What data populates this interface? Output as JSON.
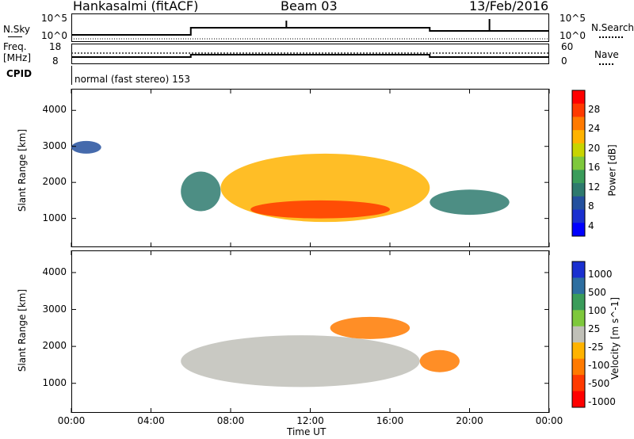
{
  "header": {
    "station": "Hankasalmi (fitACF)",
    "beam": "Beam 03",
    "date": "13/Feb/2016"
  },
  "top_panels": {
    "nsky_label": "N.Sky",
    "nsky_tick_high": "10^5",
    "nsky_tick_low": "10^0",
    "nsearch_label": "N.Search",
    "nsearch_tick_high": "10^5",
    "nsearch_tick_low": "10^0",
    "freq_label_line1": "Freq.",
    "freq_label_line2": "[MHz]",
    "freq_tick_high": "18",
    "freq_tick_low": "8",
    "nave_label": "Nave",
    "nave_tick_high": "60",
    "nave_tick_low": "0",
    "cpid_label": "CPID",
    "cpid_text": "normal (fast stereo) 153"
  },
  "axes": {
    "ylabel": "Slant Range [km]",
    "xlabel": "Time UT",
    "yticks": [
      "4000",
      "3000",
      "2000",
      "1000"
    ],
    "xticks": [
      "00:00",
      "04:00",
      "08:00",
      "12:00",
      "16:00",
      "20:00",
      "00:00"
    ]
  },
  "power_colorbar": {
    "label": "Power [dB]",
    "ticks": [
      "28",
      "24",
      "20",
      "16",
      "12",
      "8",
      "4"
    ],
    "colors": [
      "#ff0000",
      "#ff3a00",
      "#ff7a00",
      "#ffb300",
      "#c8d400",
      "#7ec83c",
      "#3a9c5a",
      "#2e7a6e",
      "#24509e",
      "#1a30d0",
      "#0000ff"
    ]
  },
  "velocity_colorbar": {
    "label": "Velocity [m s^-1]",
    "ticks": [
      "1000",
      "500",
      "100",
      "25",
      "-25",
      "-100",
      "-500",
      "-1000"
    ],
    "colors": [
      "#1a30d0",
      "#2d6ea0",
      "#3a9c5a",
      "#7ec83c",
      "#c0c0b8",
      "#ffb300",
      "#ff7a00",
      "#ff3a00",
      "#ff0000"
    ]
  },
  "chart_data": [
    {
      "type": "heatmap",
      "title": "Power",
      "xlabel": "Time UT",
      "ylabel": "Slant Range [km]",
      "xlim": [
        "00:00",
        "24:00"
      ],
      "ylim": [
        200,
        4600
      ],
      "colorbar_label": "Power [dB]",
      "colorbar_range": [
        0,
        32
      ],
      "echo_regions": [
        {
          "t_start": "00:00",
          "t_end": "01:30",
          "range_start": 2800,
          "range_end": 3150,
          "power_db": 8
        },
        {
          "t_start": "05:30",
          "t_end": "07:30",
          "range_start": 1200,
          "range_end": 2300,
          "power_db": 10
        },
        {
          "t_start": "07:30",
          "t_end": "18:00",
          "range_start": 900,
          "range_end": 2800,
          "power_db": 22
        },
        {
          "t_start": "09:00",
          "t_end": "16:00",
          "range_start": 1000,
          "range_end": 1500,
          "power_db": 28
        },
        {
          "t_start": "18:00",
          "t_end": "22:00",
          "range_start": 1100,
          "range_end": 1800,
          "power_db": 10
        }
      ]
    },
    {
      "type": "heatmap",
      "title": "Velocity",
      "xlabel": "Time UT",
      "ylabel": "Slant Range [km]",
      "xlim": [
        "00:00",
        "24:00"
      ],
      "ylim": [
        200,
        4600
      ],
      "colorbar_label": "Velocity [m s^-1]",
      "colorbar_ticks": [
        1000,
        500,
        100,
        25,
        -25,
        -100,
        -500,
        -1000
      ],
      "echo_regions": [
        {
          "t_start": "05:30",
          "t_end": "17:30",
          "range_start": 900,
          "range_end": 2300,
          "velocity": 0
        },
        {
          "t_start": "13:00",
          "t_end": "17:00",
          "range_start": 2200,
          "range_end": 2800,
          "velocity": -300
        },
        {
          "t_start": "17:30",
          "t_end": "19:30",
          "range_start": 1300,
          "range_end": 1900,
          "velocity": -400
        }
      ]
    }
  ]
}
